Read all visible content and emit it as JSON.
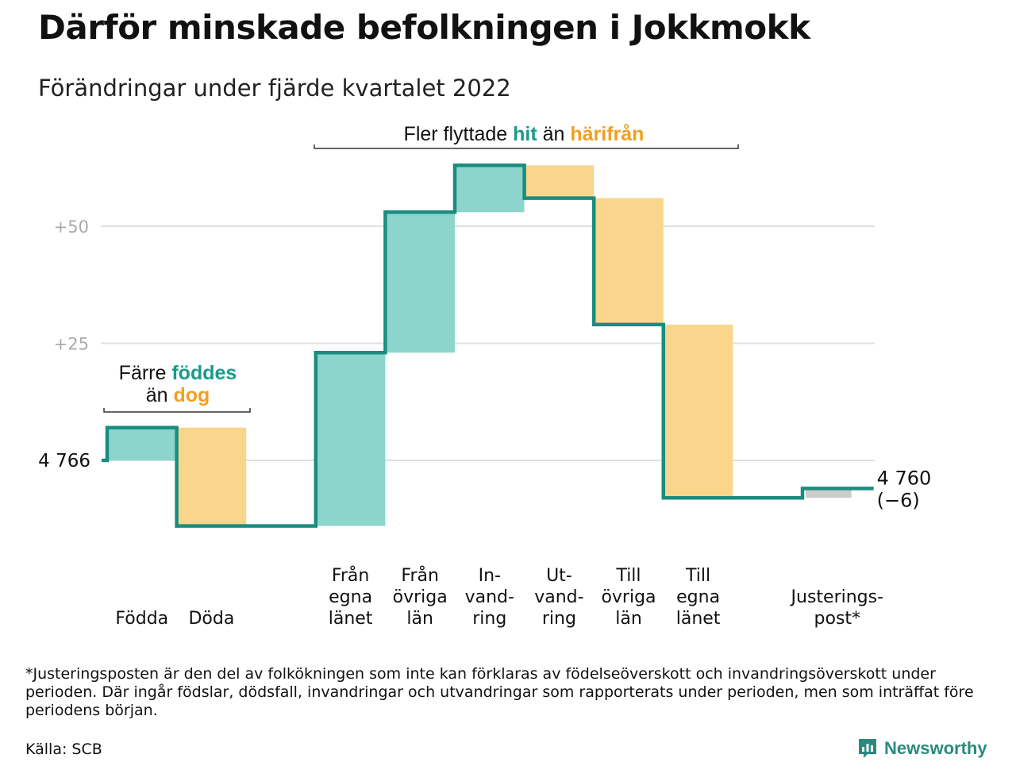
{
  "header": {
    "title": "Därför minskade befolkningen i Jokkmokk",
    "subtitle": "Förändringar under fjärde kvartalet 2022"
  },
  "colors": {
    "increase_fill": "#8dd5cc",
    "decrease_fill": "#f9d68c",
    "adjustment_fill": "#cccccc",
    "line": "#1a8c80",
    "teal_text": "#1a9a8a",
    "orange_text": "#f0a020",
    "grid": "#e0e0e0",
    "tick_text": "#aaaaaa"
  },
  "annotations": {
    "births_deaths": {
      "line1_a": "Färre ",
      "line1_b": "föddes",
      "line2_a": "än ",
      "line2_b": "dog"
    },
    "migration": {
      "part1": "Fler flyttade ",
      "part2": "hit",
      "part3": " än ",
      "part4": "härifrån"
    }
  },
  "chart_data": {
    "type": "waterfall",
    "title": "Därför minskade befolkningen i Jokkmokk",
    "subtitle": "Förändringar under fjärde kvartalet 2022",
    "start_value": 4766,
    "start_label": "4 766",
    "end_value": 4760,
    "end_label": "4 760",
    "end_change_label": "(−6)",
    "y_ticks": [
      {
        "value": 25,
        "label": "+25"
      },
      {
        "value": 50,
        "label": "+50"
      }
    ],
    "grid": true,
    "ylim": [
      -16,
      66
    ],
    "categories": [
      {
        "label": [
          "Födda"
        ],
        "change": 7,
        "kind": "increase"
      },
      {
        "label": [
          "Döda"
        ],
        "change": -21,
        "kind": "decrease"
      },
      {
        "label": [],
        "change": 0,
        "kind": "gap"
      },
      {
        "label": [
          "Från",
          "egna",
          "länet"
        ],
        "change": 37,
        "kind": "increase"
      },
      {
        "label": [
          "Från",
          "övriga",
          "län"
        ],
        "change": 30,
        "kind": "increase"
      },
      {
        "label": [
          "In-",
          "vand-",
          "ring"
        ],
        "change": 10,
        "kind": "increase"
      },
      {
        "label": [
          "Ut-",
          "vand-",
          "ring"
        ],
        "change": -7,
        "kind": "decrease"
      },
      {
        "label": [
          "Till",
          "övriga",
          "län"
        ],
        "change": -27,
        "kind": "decrease"
      },
      {
        "label": [
          "Till",
          "egna",
          "länet"
        ],
        "change": -37,
        "kind": "decrease"
      },
      {
        "label": [],
        "change": 0,
        "kind": "gap"
      },
      {
        "label": [
          "Justerings-",
          "post*"
        ],
        "change": 2,
        "kind": "adjustment"
      }
    ]
  },
  "footer": {
    "footnote": "*Justeringsposten är den del av folkökningen som inte kan förklaras av födelseöverskott och invandringsöverskott under perioden. Där ingår födslar, dödsfall, invandringar och utvandringar som rapporterats under perioden, men som inträffat före periodens början.",
    "source": "Källa: SCB",
    "brand": "Newsworthy"
  }
}
